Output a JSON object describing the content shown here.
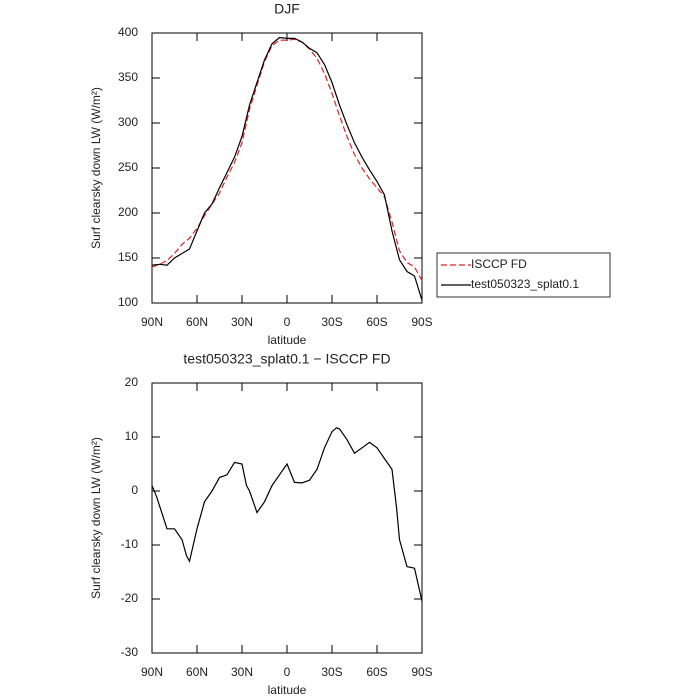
{
  "chart_data": [
    {
      "type": "line",
      "title": "DJF",
      "xlabel": "latitude",
      "ylabel": "Surf clearsky down LW (W/m²)",
      "x": [
        90,
        85,
        80,
        75,
        70,
        65,
        60,
        55,
        50,
        45,
        40,
        35,
        30,
        25,
        20,
        15,
        10,
        5,
        0,
        -5,
        -10,
        -15,
        -20,
        -25,
        -30,
        -35,
        -40,
        -45,
        -50,
        -55,
        -60,
        -65,
        -70,
        -75,
        -80,
        -85,
        -90
      ],
      "series": [
        {
          "name": "ISCCP FD",
          "color": "#e02020",
          "dashed": true,
          "values": [
            140,
            143,
            147,
            155,
            165,
            172,
            183,
            197,
            210,
            222,
            240,
            256,
            278,
            315,
            342,
            368,
            386,
            392,
            392,
            393,
            390,
            382,
            372,
            355,
            333,
            308,
            285,
            265,
            250,
            238,
            228,
            218,
            190,
            158,
            145,
            140,
            125
          ]
        },
        {
          "name": "test050323_splat0.1",
          "color": "#000000",
          "dashed": false,
          "values": [
            142,
            143,
            142,
            150,
            155,
            160,
            180,
            200,
            210,
            228,
            245,
            262,
            285,
            320,
            345,
            370,
            388,
            395,
            394,
            394,
            390,
            383,
            378,
            365,
            345,
            320,
            298,
            278,
            262,
            248,
            235,
            220,
            180,
            148,
            135,
            130,
            103
          ]
        }
      ],
      "xlim": [
        90,
        -90
      ],
      "xticks": [
        {
          "value": 90,
          "label": "90N"
        },
        {
          "value": 60,
          "label": "60N"
        },
        {
          "value": 30,
          "label": "30N"
        },
        0,
        {
          "value": -30,
          "label": "30S"
        },
        {
          "value": -60,
          "label": "60S"
        },
        {
          "value": -90,
          "label": "90S"
        }
      ],
      "ylim": [
        100,
        400
      ],
      "yticks": [
        100,
        150,
        200,
        250,
        300,
        350,
        400
      ],
      "legend": "right"
    },
    {
      "type": "line",
      "title": "test050323_splat0.1 − ISCCP FD",
      "xlabel": "latitude",
      "ylabel": "Surf clearsky down LW (W/m²)",
      "color": "#000000",
      "x": [
        90,
        87,
        80,
        75,
        70,
        67,
        65,
        60,
        55,
        50,
        45,
        40,
        35,
        30,
        27,
        25,
        20,
        15,
        10,
        5,
        0,
        -5,
        -10,
        -15,
        -20,
        -25,
        -30,
        -33,
        -35,
        -40,
        -45,
        -50,
        -55,
        -60,
        -65,
        -70,
        -73,
        -75,
        -80,
        -85,
        -90
      ],
      "values": [
        1,
        -1,
        -7,
        -7,
        -9,
        -12,
        -13,
        -7,
        -2,
        0,
        2.5,
        3,
        5.3,
        5,
        1,
        0,
        -4,
        -2,
        1,
        3,
        5,
        1.6,
        1.5,
        2,
        4,
        8,
        11,
        11.7,
        11.5,
        9.5,
        7,
        8,
        9,
        8,
        6,
        4,
        -3,
        -9,
        -14,
        -14.3,
        -20.4
      ],
      "xlim": [
        90,
        -90
      ],
      "xticks": [
        {
          "value": 90,
          "label": "90N"
        },
        {
          "value": 60,
          "label": "60N"
        },
        {
          "value": 30,
          "label": "30N"
        },
        0,
        {
          "value": -30,
          "label": "30S"
        },
        {
          "value": -60,
          "label": "60S"
        },
        {
          "value": -90,
          "label": "90S"
        }
      ],
      "ylim": [
        -30,
        20
      ],
      "yticks": [
        -30,
        -20,
        -10,
        0,
        10,
        20
      ]
    }
  ]
}
